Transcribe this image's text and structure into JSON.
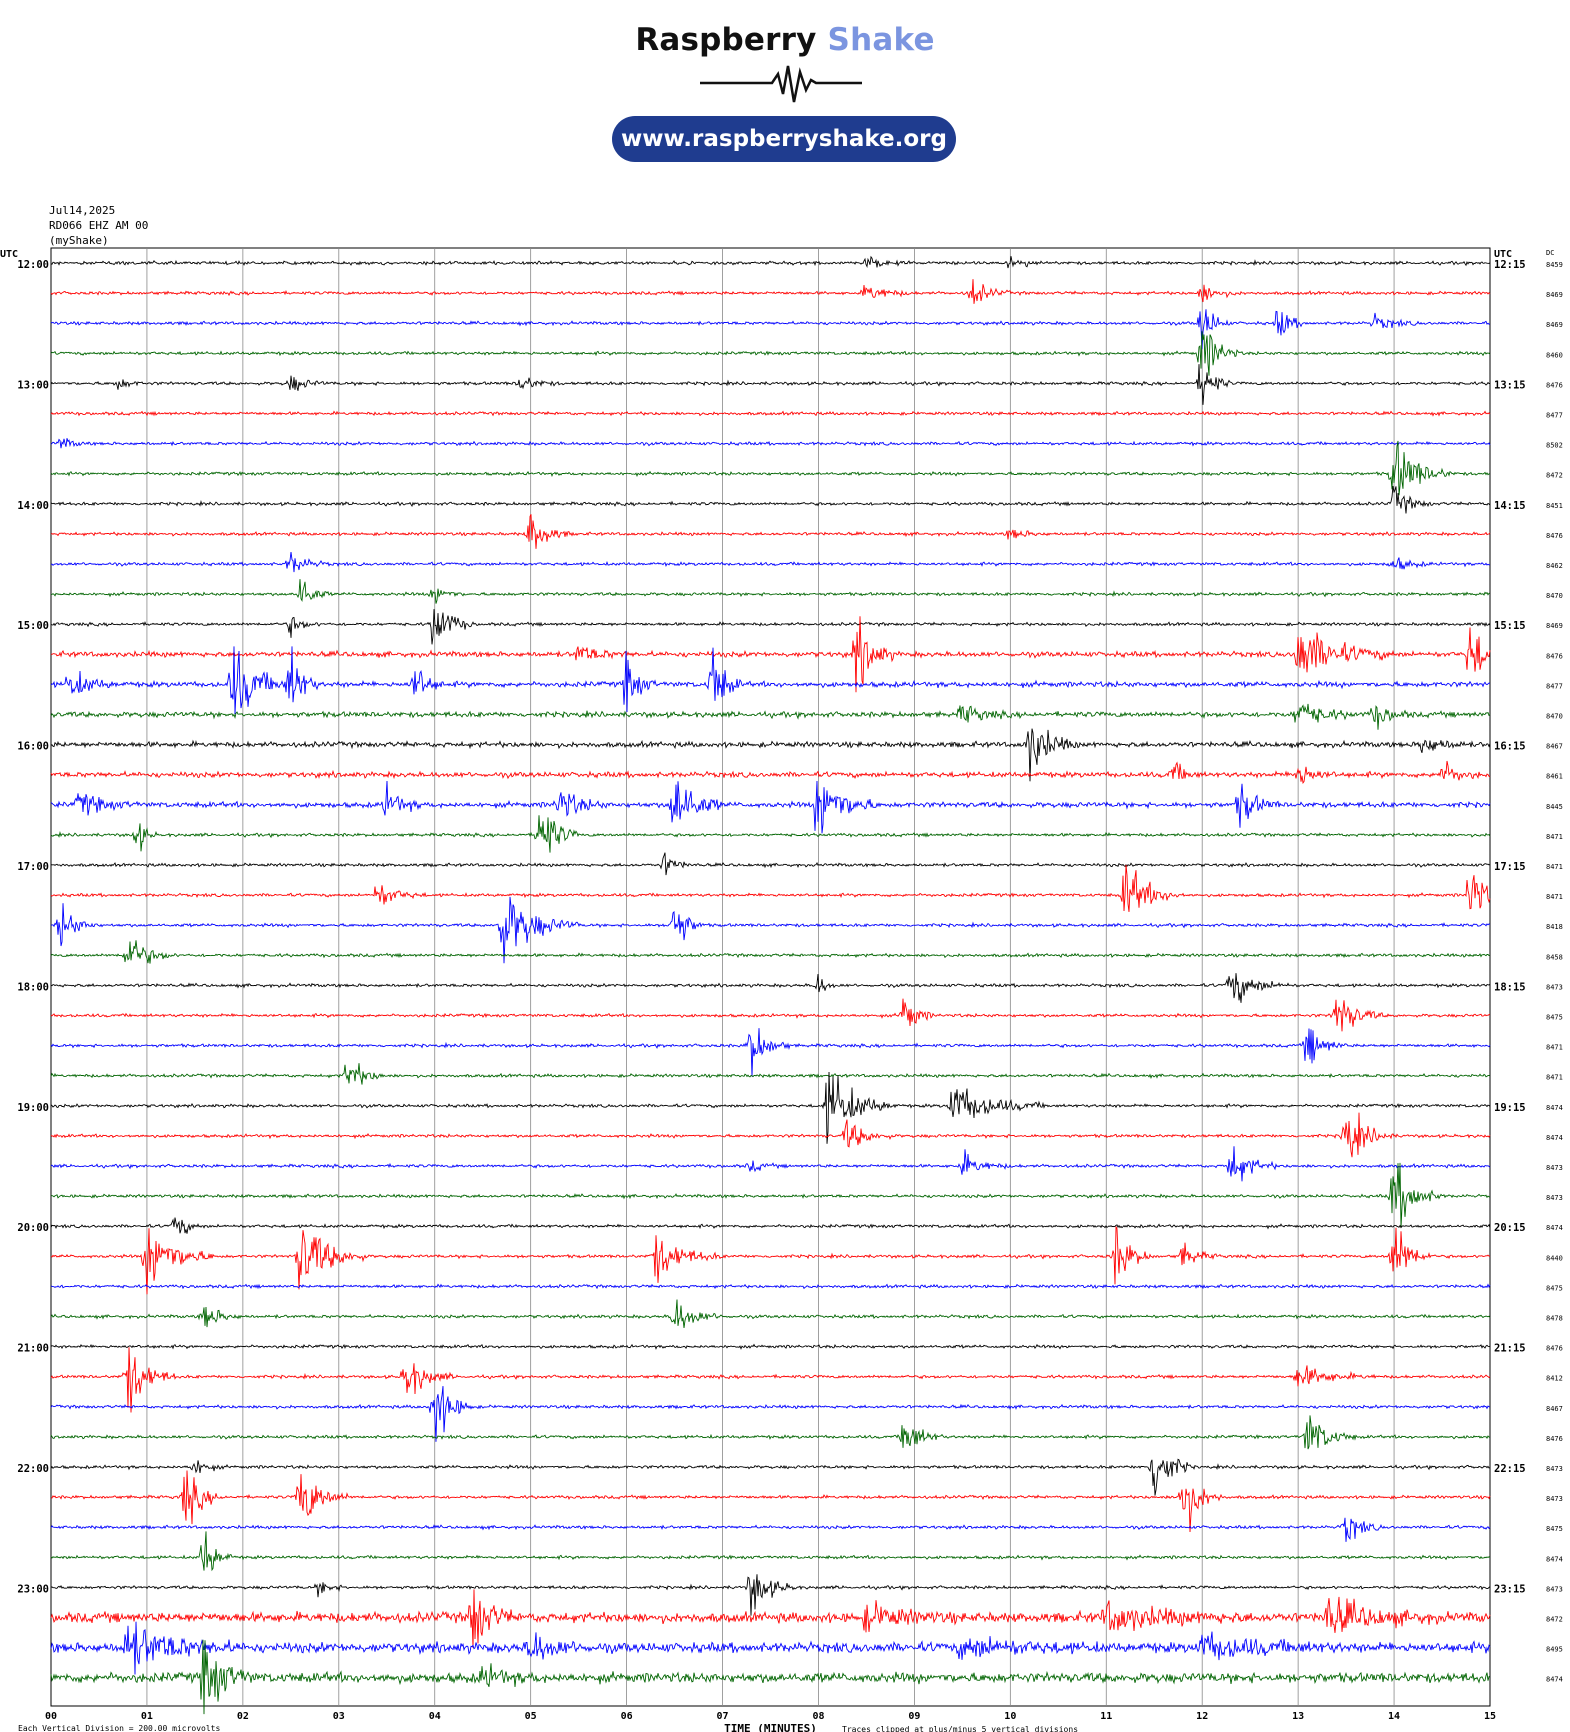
{
  "brand": {
    "name_dark": "Raspberry",
    "name_light": "Shake",
    "url": "www.raspberryshake.org"
  },
  "header": {
    "date": "Jul14,2025",
    "station": "RD066 EHZ AM 00",
    "network": "(myShake)"
  },
  "colors": {
    "cycle": [
      "#000000",
      "#ff0000",
      "#0000ff",
      "#006400"
    ],
    "brand_blue": "#1f3c8f",
    "brand_light": "#7b95e0"
  },
  "chart_data": {
    "type": "helicorder",
    "left_axis_label": "UTC",
    "right_axis_label": "UTC",
    "dc_label": "DC",
    "xlabel": "TIME (MINUTES)",
    "x_ticks": [
      "00",
      "01",
      "02",
      "03",
      "04",
      "05",
      "06",
      "07",
      "08",
      "09",
      "10",
      "11",
      "12",
      "13",
      "14",
      "15"
    ],
    "xlim": [
      0,
      15
    ],
    "row_interval_minutes": 15,
    "left_hour_labels": [
      "12:00",
      "13:00",
      "14:00",
      "15:00",
      "16:00",
      "17:00",
      "18:00",
      "19:00",
      "20:00",
      "21:00",
      "22:00",
      "23:00"
    ],
    "right_hour_labels": [
      "12:15",
      "13:15",
      "14:15",
      "15:15",
      "16:15",
      "17:15",
      "18:15",
      "19:15",
      "20:15",
      "21:15",
      "22:15",
      "23:15"
    ],
    "dc_values": [
      "8459",
      "8469",
      "8469",
      "8460",
      "8476",
      "8477",
      "8502",
      "8472",
      "8451",
      "8476",
      "8462",
      "8470",
      "8469",
      "8476",
      "8477",
      "8470",
      "8467",
      "8461",
      "8445",
      "8471",
      "8471",
      "8471",
      "8418",
      "8458",
      "8473",
      "8475",
      "8471",
      "8471",
      "8474",
      "8474",
      "8473",
      "8473",
      "8474",
      "8440",
      "8475",
      "8478",
      "8476",
      "8412",
      "8467",
      "8476",
      "8473",
      "8473",
      "8475",
      "8474",
      "8473",
      "8472",
      "8495",
      "8474"
    ],
    "footer_left": "Each Vertical Division =  200.00 microvolts",
    "footer_right": "Traces clipped at plus/minus 5 vertical divisions",
    "events": [
      {
        "row": 0,
        "minute": 8.5,
        "amp": 6,
        "dur": 0.5
      },
      {
        "row": 0,
        "minute": 10.0,
        "amp": 5,
        "dur": 0.4
      },
      {
        "row": 1,
        "minute": 9.6,
        "amp": 14,
        "dur": 0.4
      },
      {
        "row": 1,
        "minute": 8.5,
        "amp": 9,
        "dur": 0.5
      },
      {
        "row": 1,
        "minute": 12.0,
        "amp": 10,
        "dur": 0.4
      },
      {
        "row": 2,
        "minute": 12.0,
        "amp": 26,
        "dur": 0.3
      },
      {
        "row": 2,
        "minute": 12.8,
        "amp": 18,
        "dur": 0.3
      },
      {
        "row": 2,
        "minute": 13.8,
        "amp": 7,
        "dur": 0.5
      },
      {
        "row": 3,
        "minute": 12.0,
        "amp": 34,
        "dur": 0.4
      },
      {
        "row": 4,
        "minute": 0.7,
        "amp": 6,
        "dur": 0.3
      },
      {
        "row": 4,
        "minute": 2.5,
        "amp": 9,
        "dur": 0.4
      },
      {
        "row": 4,
        "minute": 4.9,
        "amp": 8,
        "dur": 0.4
      },
      {
        "row": 4,
        "minute": 12.0,
        "amp": 28,
        "dur": 0.3
      },
      {
        "row": 6,
        "minute": 0.1,
        "amp": 6,
        "dur": 0.3
      },
      {
        "row": 7,
        "minute": 14.0,
        "amp": 36,
        "dur": 0.6
      },
      {
        "row": 8,
        "minute": 14.0,
        "amp": 16,
        "dur": 0.4
      },
      {
        "row": 9,
        "minute": 5.0,
        "amp": 24,
        "dur": 0.4
      },
      {
        "row": 9,
        "minute": 10.0,
        "amp": 6,
        "dur": 0.4
      },
      {
        "row": 10,
        "minute": 2.5,
        "amp": 12,
        "dur": 0.4
      },
      {
        "row": 10,
        "minute": 14.0,
        "amp": 8,
        "dur": 0.4
      },
      {
        "row": 11,
        "minute": 2.6,
        "amp": 22,
        "dur": 0.3
      },
      {
        "row": 11,
        "minute": 4.0,
        "amp": 12,
        "dur": 0.3
      },
      {
        "row": 12,
        "minute": 4.0,
        "amp": 30,
        "dur": 0.4
      },
      {
        "row": 12,
        "minute": 2.5,
        "amp": 10,
        "dur": 0.3
      },
      {
        "row": 13,
        "minute": 8.4,
        "amp": 40,
        "dur": 0.4
      },
      {
        "row": 13,
        "minute": 13.0,
        "amp": 30,
        "dur": 1.0
      },
      {
        "row": 13,
        "minute": 14.8,
        "amp": 40,
        "dur": 0.3
      },
      {
        "row": 13,
        "minute": 5.5,
        "amp": 10,
        "dur": 0.5
      },
      {
        "row": 14,
        "minute": 1.9,
        "amp": 40,
        "dur": 0.6
      },
      {
        "row": 14,
        "minute": 2.5,
        "amp": 40,
        "dur": 0.3
      },
      {
        "row": 14,
        "minute": 6.9,
        "amp": 40,
        "dur": 0.3
      },
      {
        "row": 14,
        "minute": 6.0,
        "amp": 30,
        "dur": 0.3
      },
      {
        "row": 14,
        "minute": 0.2,
        "amp": 16,
        "dur": 0.5
      },
      {
        "row": 14,
        "minute": 3.8,
        "amp": 22,
        "dur": 0.3
      },
      {
        "row": 15,
        "minute": 9.5,
        "amp": 10,
        "dur": 0.5
      },
      {
        "row": 15,
        "minute": 13.0,
        "amp": 16,
        "dur": 0.6
      },
      {
        "row": 15,
        "minute": 13.8,
        "amp": 12,
        "dur": 0.4
      },
      {
        "row": 16,
        "minute": 10.2,
        "amp": 32,
        "dur": 0.5
      },
      {
        "row": 16,
        "minute": 14.3,
        "amp": 10,
        "dur": 0.5
      },
      {
        "row": 17,
        "minute": 11.7,
        "amp": 12,
        "dur": 0.3
      },
      {
        "row": 17,
        "minute": 13.0,
        "amp": 14,
        "dur": 0.4
      },
      {
        "row": 17,
        "minute": 14.5,
        "amp": 14,
        "dur": 0.4
      },
      {
        "row": 18,
        "minute": 6.5,
        "amp": 40,
        "dur": 0.5
      },
      {
        "row": 18,
        "minute": 8.0,
        "amp": 40,
        "dur": 0.6
      },
      {
        "row": 18,
        "minute": 5.3,
        "amp": 18,
        "dur": 0.5
      },
      {
        "row": 18,
        "minute": 12.4,
        "amp": 22,
        "dur": 0.4
      },
      {
        "row": 18,
        "minute": 0.3,
        "amp": 12,
        "dur": 0.6
      },
      {
        "row": 18,
        "minute": 3.5,
        "amp": 16,
        "dur": 0.4
      },
      {
        "row": 19,
        "minute": 5.1,
        "amp": 40,
        "dur": 0.4
      },
      {
        "row": 19,
        "minute": 0.9,
        "amp": 20,
        "dur": 0.2
      },
      {
        "row": 20,
        "minute": 6.4,
        "amp": 12,
        "dur": 0.3
      },
      {
        "row": 21,
        "minute": 3.4,
        "amp": 14,
        "dur": 0.5
      },
      {
        "row": 21,
        "minute": 11.2,
        "amp": 32,
        "dur": 0.6
      },
      {
        "row": 21,
        "minute": 14.8,
        "amp": 40,
        "dur": 0.3
      },
      {
        "row": 22,
        "minute": 4.7,
        "amp": 40,
        "dur": 0.8
      },
      {
        "row": 22,
        "minute": 0.1,
        "amp": 22,
        "dur": 0.4
      },
      {
        "row": 22,
        "minute": 6.5,
        "amp": 34,
        "dur": 0.3
      },
      {
        "row": 23,
        "minute": 0.8,
        "amp": 22,
        "dur": 0.5
      },
      {
        "row": 24,
        "minute": 12.3,
        "amp": 20,
        "dur": 0.6
      },
      {
        "row": 24,
        "minute": 8.0,
        "amp": 12,
        "dur": 0.2
      },
      {
        "row": 25,
        "minute": 8.9,
        "amp": 24,
        "dur": 0.3
      },
      {
        "row": 25,
        "minute": 13.4,
        "amp": 26,
        "dur": 0.5
      },
      {
        "row": 26,
        "minute": 7.3,
        "amp": 28,
        "dur": 0.4
      },
      {
        "row": 26,
        "minute": 13.1,
        "amp": 22,
        "dur": 0.4
      },
      {
        "row": 27,
        "minute": 3.1,
        "amp": 20,
        "dur": 0.4
      },
      {
        "row": 28,
        "minute": 8.1,
        "amp": 40,
        "dur": 0.7
      },
      {
        "row": 28,
        "minute": 9.4,
        "amp": 22,
        "dur": 1.0
      },
      {
        "row": 29,
        "minute": 8.3,
        "amp": 16,
        "dur": 0.5
      },
      {
        "row": 29,
        "minute": 13.5,
        "amp": 30,
        "dur": 0.5
      },
      {
        "row": 30,
        "minute": 12.3,
        "amp": 22,
        "dur": 0.5
      },
      {
        "row": 30,
        "minute": 9.5,
        "amp": 12,
        "dur": 0.5
      },
      {
        "row": 30,
        "minute": 7.3,
        "amp": 6,
        "dur": 0.3
      },
      {
        "row": 31,
        "minute": 14.0,
        "amp": 40,
        "dur": 0.5
      },
      {
        "row": 32,
        "minute": 1.3,
        "amp": 14,
        "dur": 0.3
      },
      {
        "row": 33,
        "minute": 1.0,
        "amp": 40,
        "dur": 0.7
      },
      {
        "row": 33,
        "minute": 2.6,
        "amp": 40,
        "dur": 0.7
      },
      {
        "row": 33,
        "minute": 6.3,
        "amp": 24,
        "dur": 0.7
      },
      {
        "row": 33,
        "minute": 11.1,
        "amp": 30,
        "dur": 0.4
      },
      {
        "row": 33,
        "minute": 11.8,
        "amp": 12,
        "dur": 0.4
      },
      {
        "row": 33,
        "minute": 14.0,
        "amp": 40,
        "dur": 0.4
      },
      {
        "row": 35,
        "minute": 1.6,
        "amp": 14,
        "dur": 0.4
      },
      {
        "row": 35,
        "minute": 6.5,
        "amp": 20,
        "dur": 0.5
      },
      {
        "row": 37,
        "minute": 0.8,
        "amp": 36,
        "dur": 0.5
      },
      {
        "row": 37,
        "minute": 3.7,
        "amp": 24,
        "dur": 0.5
      },
      {
        "row": 37,
        "minute": 13.0,
        "amp": 12,
        "dur": 0.8
      },
      {
        "row": 38,
        "minute": 4.0,
        "amp": 40,
        "dur": 0.4
      },
      {
        "row": 39,
        "minute": 8.9,
        "amp": 24,
        "dur": 0.4
      },
      {
        "row": 39,
        "minute": 13.1,
        "amp": 26,
        "dur": 0.5
      },
      {
        "row": 40,
        "minute": 11.5,
        "amp": 40,
        "dur": 0.4
      },
      {
        "row": 40,
        "minute": 1.5,
        "amp": 10,
        "dur": 0.3
      },
      {
        "row": 41,
        "minute": 1.4,
        "amp": 30,
        "dur": 0.4
      },
      {
        "row": 41,
        "minute": 2.6,
        "amp": 36,
        "dur": 0.5
      },
      {
        "row": 41,
        "minute": 11.8,
        "amp": 40,
        "dur": 0.4
      },
      {
        "row": 42,
        "minute": 13.5,
        "amp": 16,
        "dur": 0.4
      },
      {
        "row": 43,
        "minute": 1.6,
        "amp": 30,
        "dur": 0.3
      },
      {
        "row": 44,
        "minute": 7.3,
        "amp": 24,
        "dur": 0.5
      },
      {
        "row": 44,
        "minute": 2.8,
        "amp": 8,
        "dur": 0.3
      },
      {
        "row": 45,
        "minute": 4.4,
        "amp": 40,
        "dur": 0.4
      },
      {
        "row": 45,
        "minute": 11.0,
        "amp": 14,
        "dur": 1.5
      },
      {
        "row": 45,
        "minute": 13.3,
        "amp": 18,
        "dur": 1.2
      },
      {
        "row": 45,
        "minute": 8.5,
        "amp": 12,
        "dur": 1.0
      },
      {
        "row": 46,
        "minute": 0.8,
        "amp": 24,
        "dur": 1.2
      },
      {
        "row": 46,
        "minute": 5.0,
        "amp": 16,
        "dur": 0.6
      },
      {
        "row": 46,
        "minute": 9.5,
        "amp": 10,
        "dur": 1.5
      },
      {
        "row": 46,
        "minute": 12.0,
        "amp": 12,
        "dur": 1.5
      },
      {
        "row": 47,
        "minute": 1.6,
        "amp": 40,
        "dur": 0.5
      },
      {
        "row": 47,
        "minute": 4.5,
        "amp": 10,
        "dur": 0.6
      }
    ]
  }
}
